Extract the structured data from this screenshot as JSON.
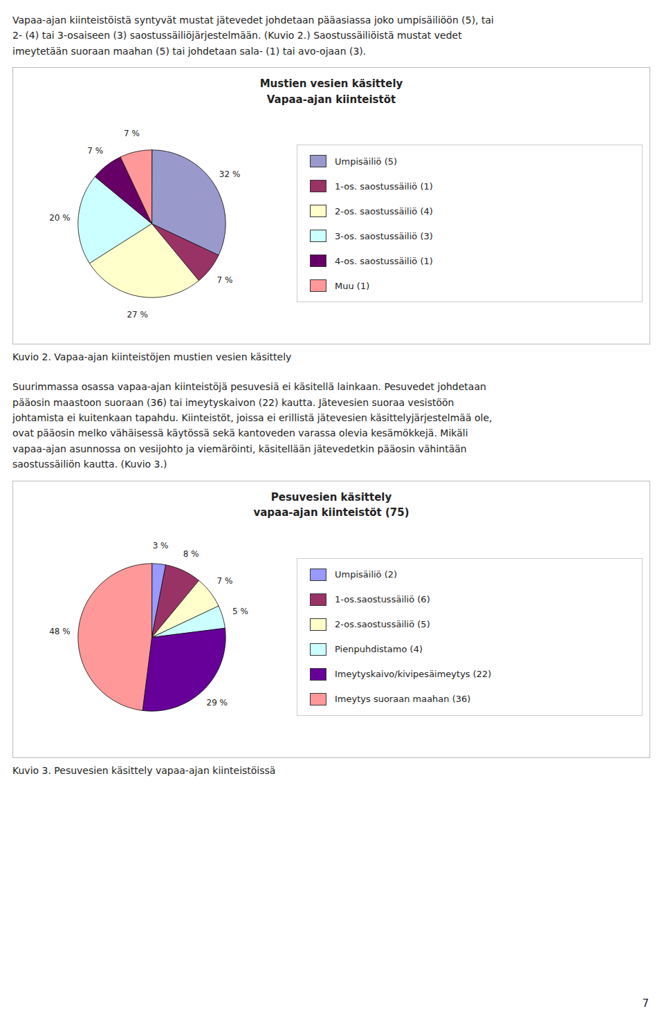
{
  "page_text_top": "Vapaa-ajan kiinteistöistä syntyvät mustat jätevedet johdetaan pääasiassa joko umpisäiliöön (5), tai\n2- (4) tai 3-osaiseen (3) saostussäiliöjärjestelmään. (Kuvio 2.) Saostussäiliöistä mustat vedet\nimeytetään suoraan maahan (5) tai johdetaan sala- (1) tai avo-ojaan (3).",
  "page_text_middle": "Suurimmassa osassa vapaa-ajan kiinteistöjä pesuvesiä ei käsitellä lainkaan. Pesuvedet johdetaan\npääosin maastoon suoraan (36) tai imeytyskaivon (22) kautta. Jätevesien suoraa vesistöön\njohtamista ei kuitenkaan tapahdu. Kiinteistöt, joissa ei erillistä jätevesien käsittelyjärjestelmää ole,\novat pääosin melko vähäisessä käytössä sekä kantoveden varassa olevia kesämökkejä. Mikäli\nvapaa-ajan asunnossa on vesijohto ja viemäröinti, käsitellään jätevedetkin pääosin vähintään\nsaostussäiliön kautta. (Kuvio 3.)",
  "page_number": "7",
  "chart_data": [
    {
      "type": "pie",
      "title": "Mustien vesien käsittely",
      "subtitle": "Vapaa-ajan kiinteistöt",
      "categories": [
        "Umpisäiliö (5)",
        "1-os. saostussäiliö (1)",
        "2-os. saostussäiliö (4)",
        "3-os. saostussäiliö (3)",
        "4-os. saostussäiliö (1)",
        "Muu (1)"
      ],
      "values": [
        32,
        7,
        27,
        20,
        7,
        7
      ],
      "value_labels": [
        "32 %",
        "7 %",
        "27 %",
        "20 %",
        "7 %",
        "7 %"
      ],
      "colors": [
        "#9999cc",
        "#993366",
        "#ffffcc",
        "#ccffff",
        "#660066",
        "#ff9999"
      ],
      "data_labels": true,
      "legend": "right",
      "caption": "Kuvio 2. Vapaa-ajan kiinteistöjen mustien vesien käsittely"
    },
    {
      "type": "pie",
      "title": "Pesuvesien käsittely",
      "subtitle": "vapaa-ajan kiinteistöt (75)",
      "categories": [
        "Umpisäiliö (2)",
        "1-os.saostussäiliö (6)",
        "2-os.saostussäiliö (5)",
        "Pienpuhdistamo (4)",
        "Imeytyskaivo/kivipesäimeytys (22)",
        "Imeytys suoraan maahan (36)"
      ],
      "values": [
        3,
        8,
        7,
        5,
        29,
        48
      ],
      "value_labels": [
        "3 %",
        "8 %",
        "7 %",
        "5 %",
        "29 %",
        "48 %"
      ],
      "colors": [
        "#9999ff",
        "#993366",
        "#ffffcc",
        "#ccffff",
        "#660099",
        "#ff9999"
      ],
      "data_labels": true,
      "legend": "right",
      "caption": "Kuvio 3. Pesuvesien käsittely vapaa-ajan kiinteistöissä"
    }
  ]
}
